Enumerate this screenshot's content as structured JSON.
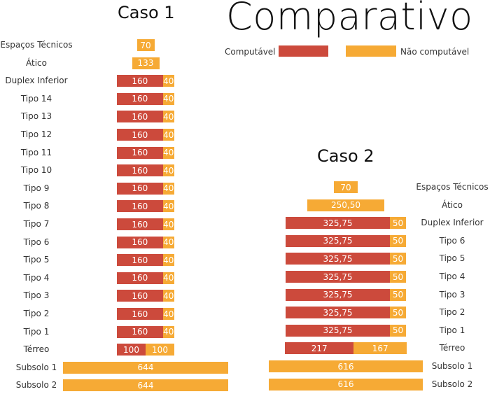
{
  "title": "Comparativo",
  "legend": {
    "computavel": "Computável",
    "nao_computavel": "Não computável",
    "colors": {
      "computavel": "#cc4a3c",
      "nao_computavel": "#f6aa35"
    }
  },
  "chart_data": [
    {
      "type": "bar",
      "orientation": "horizontal-stacked",
      "title": "Caso 1",
      "series_names": [
        "Computável",
        "Não computável"
      ],
      "rows": [
        {
          "label": "Espaços Técnicos",
          "computavel": null,
          "nao": "70"
        },
        {
          "label": "Ático",
          "computavel": null,
          "nao": "133"
        },
        {
          "label": "Duplex Inferior",
          "computavel": "160",
          "nao": "40"
        },
        {
          "label": "Tipo 14",
          "computavel": "160",
          "nao": "40"
        },
        {
          "label": "Tipo 13",
          "computavel": "160",
          "nao": "40"
        },
        {
          "label": "Tipo 12",
          "computavel": "160",
          "nao": "40"
        },
        {
          "label": "Tipo 11",
          "computavel": "160",
          "nao": "40"
        },
        {
          "label": "Tipo 10",
          "computavel": "160",
          "nao": "40"
        },
        {
          "label": "Tipo 9",
          "computavel": "160",
          "nao": "40"
        },
        {
          "label": "Tipo 8",
          "computavel": "160",
          "nao": "40"
        },
        {
          "label": "Tipo 7",
          "computavel": "160",
          "nao": "40"
        },
        {
          "label": "Tipo 6",
          "computavel": "160",
          "nao": "40"
        },
        {
          "label": "Tipo 5",
          "computavel": "160",
          "nao": "40"
        },
        {
          "label": "Tipo 4",
          "computavel": "160",
          "nao": "40"
        },
        {
          "label": "Tipo 3",
          "computavel": "160",
          "nao": "40"
        },
        {
          "label": "Tipo 2",
          "computavel": "160",
          "nao": "40"
        },
        {
          "label": "Tipo 1",
          "computavel": "160",
          "nao": "40"
        },
        {
          "label": "Térreo",
          "computavel": "100",
          "nao": "100"
        },
        {
          "label": "Subsolo 1",
          "computavel": null,
          "nao": "644"
        },
        {
          "label": "Subsolo 2",
          "computavel": null,
          "nao": "644"
        }
      ]
    },
    {
      "type": "bar",
      "orientation": "horizontal-stacked",
      "title": "Caso 2",
      "series_names": [
        "Computável",
        "Não computável"
      ],
      "rows": [
        {
          "label": "Espaços Técnicos",
          "computavel": null,
          "nao": "70"
        },
        {
          "label": "Ático",
          "computavel": null,
          "nao": "250,50"
        },
        {
          "label": "Duplex Inferior",
          "computavel": "325,75",
          "nao": "50"
        },
        {
          "label": "Tipo 6",
          "computavel": "325,75",
          "nao": "50"
        },
        {
          "label": "Tipo 5",
          "computavel": "325,75",
          "nao": "50"
        },
        {
          "label": "Tipo 4",
          "computavel": "325,75",
          "nao": "50"
        },
        {
          "label": "Tipo 3",
          "computavel": "325,75",
          "nao": "50"
        },
        {
          "label": "Tipo 2",
          "computavel": "325,75",
          "nao": "50"
        },
        {
          "label": "Tipo 1",
          "computavel": "325,75",
          "nao": "50"
        },
        {
          "label": "Térreo",
          "computavel": "217",
          "nao": "167"
        },
        {
          "label": "Subsolo 1",
          "computavel": null,
          "nao": "616"
        },
        {
          "label": "Subsolo 2",
          "computavel": null,
          "nao": "616"
        }
      ]
    }
  ]
}
